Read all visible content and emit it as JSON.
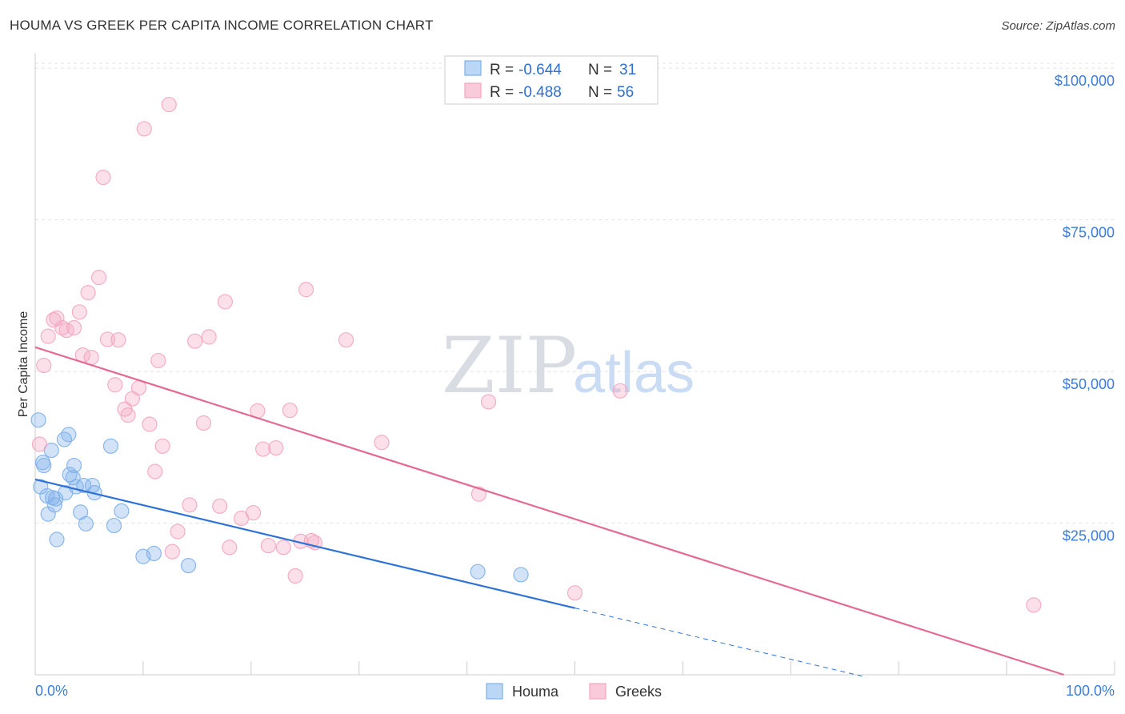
{
  "title": "HOUMA VS GREEK PER CAPITA INCOME CORRELATION CHART",
  "source": "Source: ZipAtlas.com",
  "watermark": {
    "zip": "ZIP",
    "atlas": "atlas"
  },
  "colors": {
    "houma": "#7eb0ea",
    "houma_line": "#2f72d6",
    "greeks": "#f3a6bf",
    "greeks_line": "#e56a93",
    "axis_text": "#3b7dd8"
  },
  "legend": {
    "rows": [
      {
        "r_label": "R = ",
        "r_value": "-0.644",
        "n_label": "N = ",
        "n_value": "31"
      },
      {
        "r_label": "R = ",
        "r_value": "-0.488",
        "n_label": "N = ",
        "n_value": "56"
      }
    ]
  },
  "bottom_legend": [
    "Houma",
    "Greeks"
  ],
  "chart_data": {
    "type": "scatter",
    "xlabel": "",
    "ylabel": "Per Capita Income",
    "xlim": [
      0,
      100
    ],
    "ylim": [
      0,
      102000
    ],
    "x_tick_labels": [
      "0.0%",
      "100.0%"
    ],
    "y_ticks": [
      25000,
      50000,
      75000,
      100000
    ],
    "y_tick_labels": [
      "$25,000",
      "$50,000",
      "$75,000",
      "$100,000"
    ],
    "series": [
      {
        "name": "Houma",
        "points": [
          [
            0.3,
            42000
          ],
          [
            0.5,
            31000
          ],
          [
            0.7,
            35000
          ],
          [
            0.8,
            34500
          ],
          [
            1.1,
            29500
          ],
          [
            1.2,
            26500
          ],
          [
            1.5,
            37000
          ],
          [
            1.6,
            29200
          ],
          [
            1.8,
            28000
          ],
          [
            1.9,
            29000
          ],
          [
            2.0,
            22300
          ],
          [
            2.7,
            38800
          ],
          [
            2.8,
            30000
          ],
          [
            3.1,
            39600
          ],
          [
            3.2,
            33000
          ],
          [
            3.5,
            32500
          ],
          [
            3.6,
            34500
          ],
          [
            3.8,
            31000
          ],
          [
            4.2,
            26800
          ],
          [
            4.5,
            31200
          ],
          [
            4.7,
            24900
          ],
          [
            5.3,
            31200
          ],
          [
            5.5,
            30000
          ],
          [
            7.0,
            37700
          ],
          [
            7.3,
            24600
          ],
          [
            8.0,
            27000
          ],
          [
            10.0,
            19500
          ],
          [
            11.0,
            20000
          ],
          [
            14.2,
            18000
          ],
          [
            41.0,
            17000
          ],
          [
            45.0,
            16500
          ]
        ],
        "trend": {
          "x": [
            0,
            50
          ],
          "y": [
            32200,
            11000
          ]
        },
        "trend_extension": {
          "x": [
            50,
            77
          ],
          "y": [
            11000,
            -400
          ]
        }
      },
      {
        "name": "Greeks",
        "points": [
          [
            0.4,
            38000
          ],
          [
            0.8,
            51000
          ],
          [
            1.2,
            55800
          ],
          [
            1.7,
            58500
          ],
          [
            2.0,
            58800
          ],
          [
            2.5,
            57200
          ],
          [
            2.9,
            56800
          ],
          [
            3.6,
            57200
          ],
          [
            4.1,
            59800
          ],
          [
            4.4,
            52700
          ],
          [
            4.9,
            63000
          ],
          [
            5.2,
            52300
          ],
          [
            5.9,
            65500
          ],
          [
            6.3,
            82000
          ],
          [
            6.7,
            55300
          ],
          [
            7.4,
            47800
          ],
          [
            7.7,
            55200
          ],
          [
            8.3,
            43800
          ],
          [
            8.6,
            42800
          ],
          [
            9.0,
            45500
          ],
          [
            9.6,
            47300
          ],
          [
            10.1,
            90000
          ],
          [
            10.6,
            41300
          ],
          [
            11.1,
            33500
          ],
          [
            11.4,
            51800
          ],
          [
            11.8,
            37700
          ],
          [
            12.4,
            94000
          ],
          [
            12.7,
            20300
          ],
          [
            13.2,
            23600
          ],
          [
            14.3,
            28000
          ],
          [
            14.8,
            55000
          ],
          [
            15.6,
            41500
          ],
          [
            16.1,
            55700
          ],
          [
            17.1,
            27800
          ],
          [
            17.6,
            61500
          ],
          [
            18.0,
            21000
          ],
          [
            19.1,
            25800
          ],
          [
            20.2,
            26700
          ],
          [
            20.6,
            43500
          ],
          [
            21.1,
            37200
          ],
          [
            21.6,
            21300
          ],
          [
            22.3,
            37400
          ],
          [
            23.0,
            21000
          ],
          [
            23.6,
            43600
          ],
          [
            24.1,
            16300
          ],
          [
            24.6,
            22000
          ],
          [
            25.1,
            63500
          ],
          [
            25.6,
            22100
          ],
          [
            25.9,
            21800
          ],
          [
            28.8,
            55200
          ],
          [
            32.1,
            38300
          ],
          [
            41.1,
            29800
          ],
          [
            42.0,
            45000
          ],
          [
            50.0,
            13500
          ],
          [
            54.2,
            46800
          ],
          [
            92.5,
            11500
          ]
        ],
        "trend": {
          "x": [
            0,
            95.3
          ],
          "y": [
            54000,
            0
          ]
        }
      }
    ]
  }
}
